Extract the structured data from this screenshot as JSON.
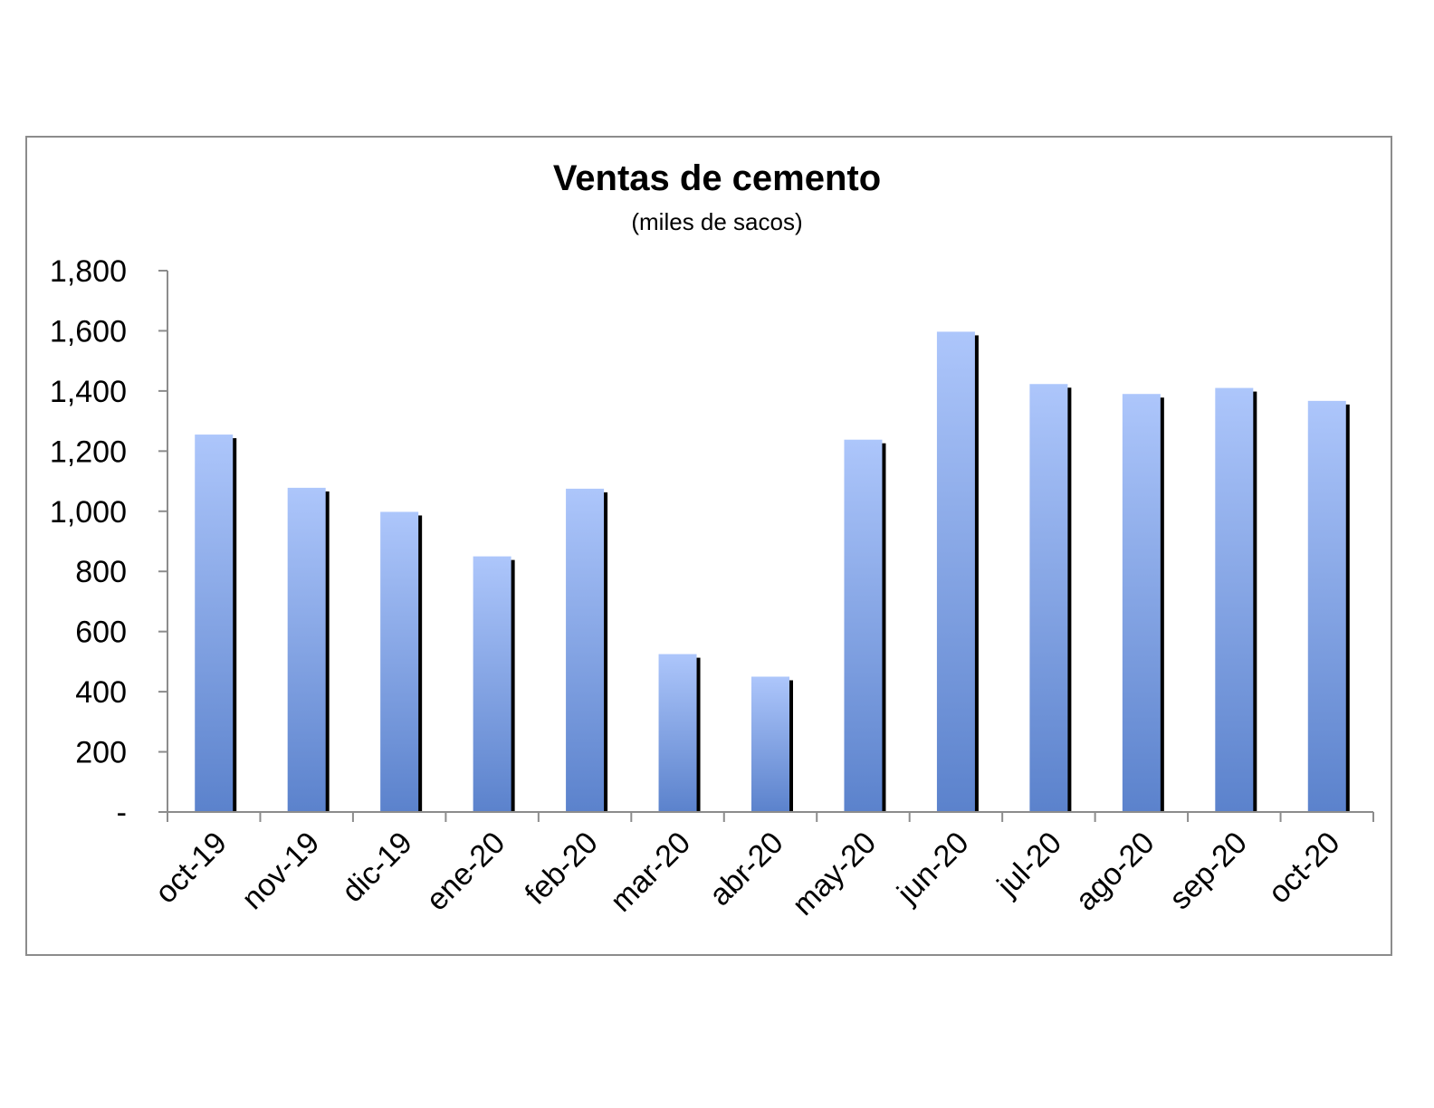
{
  "chart_data": {
    "type": "bar",
    "title": "Ventas de cemento",
    "subtitle": "(miles de sacos)",
    "xlabel": "",
    "ylabel": "",
    "categories": [
      "oct-19",
      "nov-19",
      "dic-19",
      "ene-20",
      "feb-20",
      "mar-20",
      "abr-20",
      "may-20",
      "jun-20",
      "jul-20",
      "ago-20",
      "sep-20",
      "oct-20"
    ],
    "values": [
      1255,
      1078,
      998,
      850,
      1075,
      525,
      450,
      1238,
      1597,
      1423,
      1390,
      1410,
      1367
    ],
    "ylim": [
      0,
      1800
    ],
    "yticks": [
      0,
      200,
      400,
      600,
      800,
      1000,
      1200,
      1400,
      1600,
      1800
    ],
    "ytick_labels": [
      "-",
      "200",
      "400",
      "600",
      "800",
      "1,000",
      "1,200",
      "1,400",
      "1,600",
      "1,800"
    ],
    "grid": false,
    "legend": "none",
    "colors": {
      "bar_top": "#adc6fb",
      "bar_bottom": "#5b82cc",
      "shadow": "#000000",
      "axis": "#8c8c8c"
    }
  }
}
